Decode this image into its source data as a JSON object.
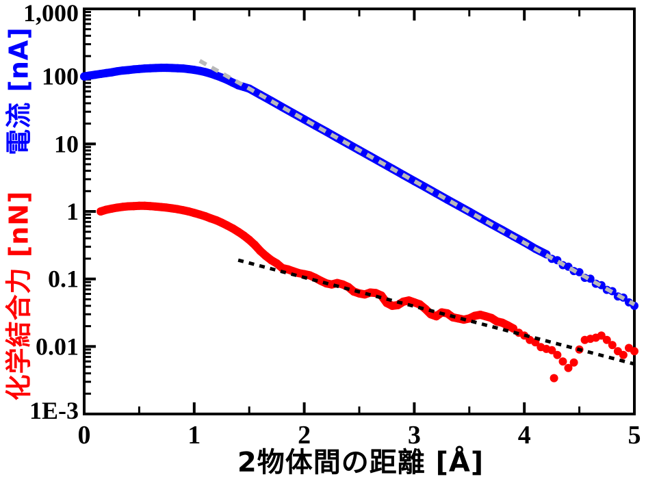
{
  "chart_data": {
    "type": "scatter",
    "title": "",
    "xlabel": "2物体間の距離 [Å]",
    "ylabel_current": "電流 [nA]",
    "ylabel_force": "化学結合力 [nN]",
    "ylabel_current_color": "#0000ff",
    "ylabel_force_color": "#ff0000",
    "x_range": [
      0,
      5
    ],
    "y_scale": "log",
    "y_range": [
      0.001,
      1000
    ],
    "grid": "off",
    "legend": "none",
    "x_tick_values": [
      0,
      1,
      2,
      3,
      4,
      5
    ],
    "x_tick_labels": [
      "0",
      "1",
      "2",
      "3",
      "4",
      "5"
    ],
    "x_minor_tick_step": 0.5,
    "y_tick_values": [
      1000,
      100,
      10,
      1,
      0.1,
      0.01,
      0.001
    ],
    "y_tick_labels": [
      "1,000",
      "100",
      "10",
      "1",
      "0.1",
      "0.01",
      "1E-3"
    ],
    "frame_color": "#000000",
    "series": [
      {
        "name": "current",
        "label": "電流",
        "unit": "nA",
        "color": "#0000ff",
        "marker": "dot",
        "solid_line_until_x": 4.2,
        "points": [
          [
            0,
            100
          ],
          [
            0.05,
            103
          ],
          [
            0.1,
            106
          ],
          [
            0.15,
            109
          ],
          [
            0.2,
            112
          ],
          [
            0.25,
            115
          ],
          [
            0.3,
            119
          ],
          [
            0.35,
            122
          ],
          [
            0.4,
            124
          ],
          [
            0.45,
            127
          ],
          [
            0.5,
            129
          ],
          [
            0.55,
            131
          ],
          [
            0.6,
            132
          ],
          [
            0.65,
            133
          ],
          [
            0.7,
            134
          ],
          [
            0.75,
            134
          ],
          [
            0.8,
            133
          ],
          [
            0.85,
            132
          ],
          [
            0.9,
            131
          ],
          [
            0.95,
            128
          ],
          [
            1,
            125
          ],
          [
            1.05,
            121
          ],
          [
            1.1,
            116
          ],
          [
            1.15,
            110
          ],
          [
            1.2,
            103
          ],
          [
            1.25,
            96
          ],
          [
            1.3,
            89
          ],
          [
            1.35,
            81
          ],
          [
            1.4,
            74
          ],
          [
            1.45,
            70
          ],
          [
            1.5,
            66
          ],
          [
            1.6,
            53.5
          ],
          [
            1.7,
            43.4
          ],
          [
            1.8,
            35.1
          ],
          [
            1.9,
            28.5
          ],
          [
            2,
            23.1
          ],
          [
            2.1,
            18.7
          ],
          [
            2.2,
            15.2
          ],
          [
            2.3,
            12.3
          ],
          [
            2.4,
            9.96
          ],
          [
            2.5,
            8.07
          ],
          [
            2.6,
            6.55
          ],
          [
            2.7,
            5.3
          ],
          [
            2.8,
            4.3
          ],
          [
            2.9,
            3.48
          ],
          [
            3,
            2.82
          ],
          [
            3.1,
            2.29
          ],
          [
            3.2,
            1.85
          ],
          [
            3.3,
            1.5
          ],
          [
            3.4,
            1.22
          ],
          [
            3.5,
            0.99
          ],
          [
            3.6,
            0.8
          ],
          [
            3.7,
            0.65
          ],
          [
            3.8,
            0.53
          ],
          [
            3.9,
            0.43
          ],
          [
            4,
            0.35
          ],
          [
            4.1,
            0.28
          ],
          [
            4.2,
            0.232
          ],
          [
            4.25,
            0.199
          ],
          [
            4.3,
            0.19
          ],
          [
            4.35,
            0.16
          ],
          [
            4.4,
            0.152
          ],
          [
            4.45,
            0.131
          ],
          [
            4.5,
            0.126
          ],
          [
            4.55,
            0.104
          ],
          [
            4.6,
            0.101
          ],
          [
            4.65,
            0.085
          ],
          [
            4.7,
            0.081
          ],
          [
            4.75,
            0.069
          ],
          [
            4.8,
            0.066
          ],
          [
            4.85,
            0.055
          ],
          [
            4.9,
            0.053
          ],
          [
            4.95,
            0.045
          ],
          [
            5,
            0.04
          ]
        ]
      },
      {
        "name": "force",
        "label": "化学結合力",
        "unit": "nN",
        "color": "#ff0000",
        "marker": "dot",
        "solid_line_until_x": 3.9,
        "points": [
          [
            0.15,
            1
          ],
          [
            0.2,
            1.06
          ],
          [
            0.25,
            1.1
          ],
          [
            0.3,
            1.14
          ],
          [
            0.35,
            1.17
          ],
          [
            0.4,
            1.19
          ],
          [
            0.45,
            1.2
          ],
          [
            0.5,
            1.21
          ],
          [
            0.55,
            1.21
          ],
          [
            0.6,
            1.2
          ],
          [
            0.65,
            1.18
          ],
          [
            0.7,
            1.16
          ],
          [
            0.75,
            1.14
          ],
          [
            0.8,
            1.11
          ],
          [
            0.85,
            1.08
          ],
          [
            0.9,
            1.04
          ],
          [
            0.95,
            1
          ],
          [
            1,
            0.95
          ],
          [
            1.05,
            0.9
          ],
          [
            1.1,
            0.85
          ],
          [
            1.15,
            0.79
          ],
          [
            1.2,
            0.74
          ],
          [
            1.25,
            0.68
          ],
          [
            1.3,
            0.62
          ],
          [
            1.35,
            0.56
          ],
          [
            1.4,
            0.5
          ],
          [
            1.45,
            0.44
          ],
          [
            1.5,
            0.38
          ],
          [
            1.55,
            0.32
          ],
          [
            1.6,
            0.26
          ],
          [
            1.65,
            0.22
          ],
          [
            1.7,
            0.19
          ],
          [
            1.75,
            0.17
          ],
          [
            1.8,
            0.145
          ],
          [
            1.85,
            0.139
          ],
          [
            1.9,
            0.13
          ],
          [
            1.95,
            0.122
          ],
          [
            2,
            0.118
          ],
          [
            2.05,
            0.113
          ],
          [
            2.1,
            0.104
          ],
          [
            2.15,
            0.094
          ],
          [
            2.2,
            0.086
          ],
          [
            2.25,
            0.083
          ],
          [
            2.3,
            0.087
          ],
          [
            2.35,
            0.083
          ],
          [
            2.4,
            0.076
          ],
          [
            2.45,
            0.065
          ],
          [
            2.5,
            0.061
          ],
          [
            2.55,
            0.059
          ],
          [
            2.6,
            0.063
          ],
          [
            2.65,
            0.062
          ],
          [
            2.7,
            0.057
          ],
          [
            2.75,
            0.044
          ],
          [
            2.8,
            0.04
          ],
          [
            2.85,
            0.041
          ],
          [
            2.9,
            0.046
          ],
          [
            2.95,
            0.048
          ],
          [
            3,
            0.045
          ],
          [
            3.05,
            0.042
          ],
          [
            3.1,
            0.036
          ],
          [
            3.15,
            0.03
          ],
          [
            3.2,
            0.028
          ],
          [
            3.25,
            0.032
          ],
          [
            3.3,
            0.031
          ],
          [
            3.35,
            0.027
          ],
          [
            3.4,
            0.026
          ],
          [
            3.45,
            0.025
          ],
          [
            3.5,
            0.026
          ],
          [
            3.55,
            0.0285
          ],
          [
            3.6,
            0.0295
          ],
          [
            3.65,
            0.028
          ],
          [
            3.7,
            0.0265
          ],
          [
            3.75,
            0.0235
          ],
          [
            3.8,
            0.0225
          ],
          [
            3.85,
            0.0205
          ],
          [
            3.9,
            0.0185
          ],
          [
            3.95,
            0.016
          ],
          [
            4,
            0.0145
          ],
          [
            4.05,
            0.0125
          ],
          [
            4.1,
            0.0115
          ],
          [
            4.15,
            0.0098
          ],
          [
            4.2,
            0.0092
          ],
          [
            4.25,
            0.0088
          ],
          [
            4.27,
            0.0034
          ],
          [
            4.3,
            0.0075
          ],
          [
            4.35,
            0.006
          ],
          [
            4.4,
            0.0048
          ],
          [
            4.45,
            0.0058
          ],
          [
            4.5,
            0.009
          ],
          [
            4.55,
            0.0125
          ],
          [
            4.6,
            0.013
          ],
          [
            4.65,
            0.0135
          ],
          [
            4.7,
            0.0145
          ],
          [
            4.75,
            0.0125
          ],
          [
            4.8,
            0.0105
          ],
          [
            4.85,
            0.0085
          ],
          [
            4.9,
            0.0075
          ],
          [
            4.95,
            0.0095
          ],
          [
            5,
            0.0085
          ]
        ]
      },
      {
        "name": "current-exponential-fit",
        "color": "#b9b9b9",
        "style": "dashed",
        "points": [
          [
            1.05,
            170
          ],
          [
            5,
            0.042
          ]
        ]
      },
      {
        "name": "force-exponential-fit",
        "color": "#000000",
        "style": "dotted",
        "points": [
          [
            1.4,
            0.19
          ],
          [
            5,
            0.0055
          ]
        ]
      }
    ]
  }
}
